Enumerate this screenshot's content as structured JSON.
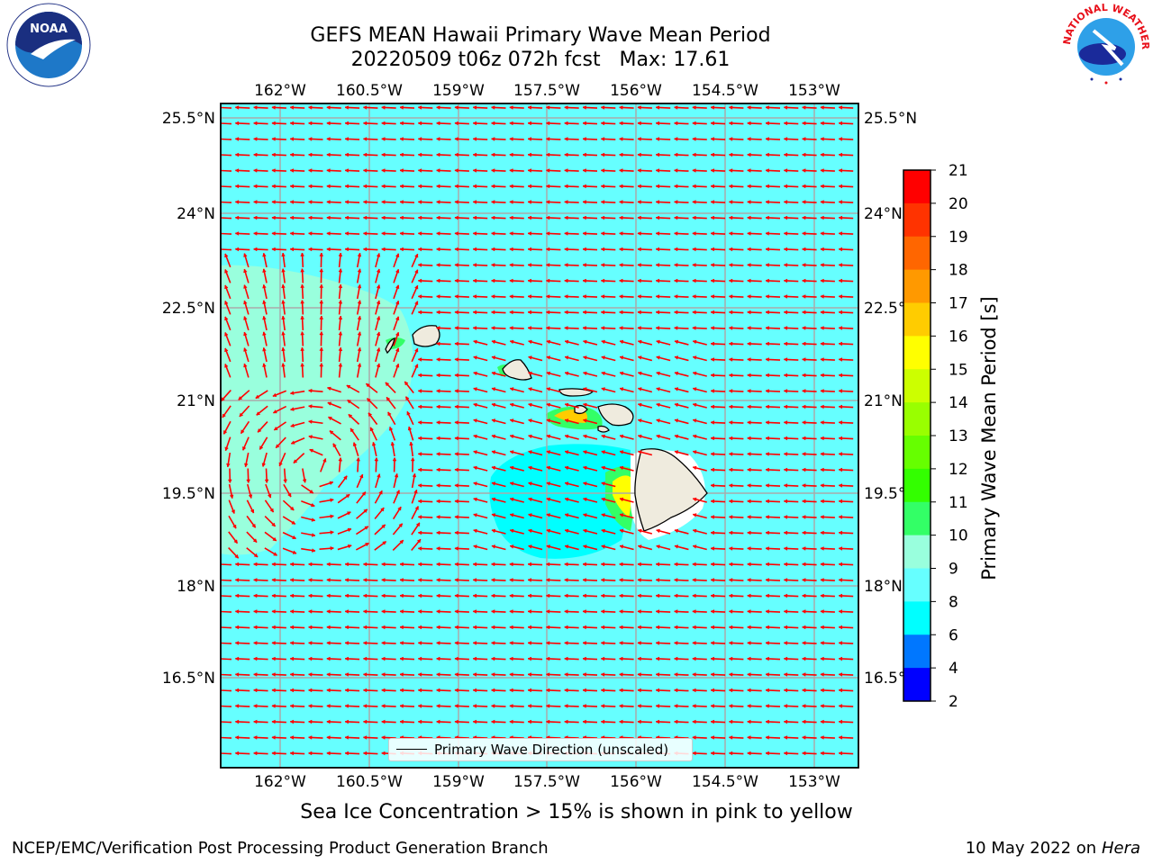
{
  "header": {
    "title_line1": "GEFS MEAN Hawaii Primary Wave Mean Period",
    "title_line2": "20220509 t06z 072h fcst   Max: 17.61"
  },
  "map": {
    "lon_ticks": [
      "162°W",
      "160.5°W",
      "159°W",
      "157.5°W",
      "156°W",
      "154.5°W",
      "153°W"
    ],
    "lat_ticks": [
      "25.5°N",
      "24°N",
      "22.5°N",
      "21°N",
      "19.5°N",
      "18°N",
      "16.5°N"
    ],
    "base_color": "#66ffff",
    "arrow_color": "#ff0000",
    "legend_label": "Primary Wave Direction (unscaled)"
  },
  "colorbar": {
    "label": "Primary Wave Mean Period [s]",
    "ticks": [
      "21",
      "20",
      "19",
      "18",
      "17",
      "16",
      "15",
      "14",
      "13",
      "12",
      "11",
      "10",
      "9",
      "8",
      "6",
      "4",
      "2"
    ],
    "colors": [
      "#ff0000",
      "#ff3300",
      "#ff6600",
      "#ff9900",
      "#ffcc00",
      "#ffff00",
      "#ccff00",
      "#99ff00",
      "#66ff00",
      "#33ff00",
      "#33ff66",
      "#99ffdd",
      "#66ffff",
      "#00ffff",
      "#0077ff",
      "#0000ff"
    ]
  },
  "caption": "Sea Ice Concentration > 15% is shown in pink to yellow",
  "footer": {
    "left": "NCEP/EMC/Verification Post Processing Product Generation Branch",
    "right_prefix": "10 May 2022 on",
    "right_host": "Hera"
  },
  "logos": {
    "noaa_text": "NOAA",
    "nws_text": "NATIONAL WEATHER SERVICE"
  }
}
